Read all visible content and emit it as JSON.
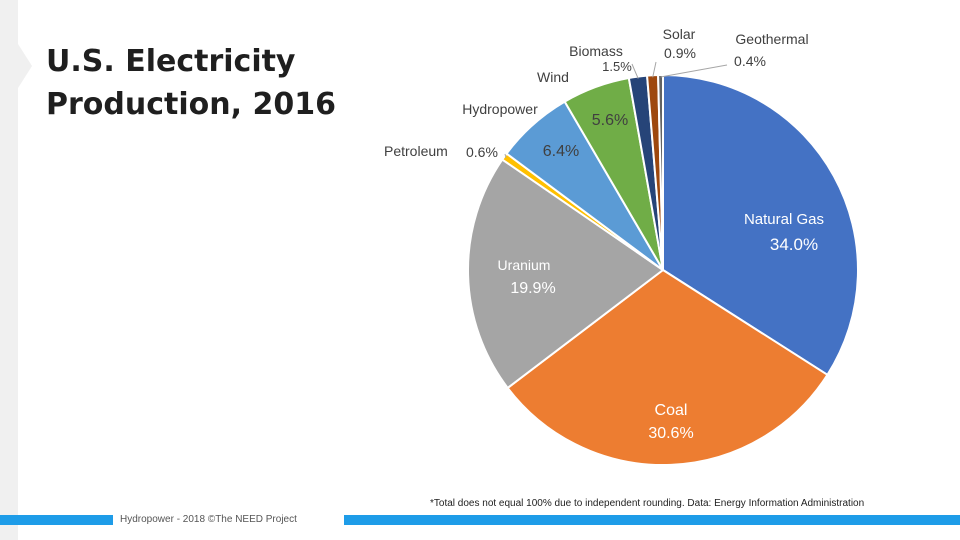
{
  "title": {
    "line1": "U.S. Electricity",
    "line2": "Production, 2016"
  },
  "chart_data": {
    "type": "pie",
    "title": "U.S. Electricity Production, 2016",
    "slices": [
      {
        "label": "Natural Gas",
        "value": 34.0,
        "value_text": "34.0%",
        "color": "#4472c4"
      },
      {
        "label": "Coal",
        "value": 30.6,
        "value_text": "30.6%",
        "color": "#ed7d31"
      },
      {
        "label": "Uranium",
        "value": 19.9,
        "value_text": "19.9%",
        "color": "#a5a5a5"
      },
      {
        "label": "Petroleum",
        "value": 0.6,
        "value_text": "0.6%",
        "color": "#ffc000"
      },
      {
        "label": "Hydropower",
        "value": 6.4,
        "value_text": "6.4%",
        "color": "#5b9bd5"
      },
      {
        "label": "Wind",
        "value": 5.6,
        "value_text": "5.6%",
        "color": "#70ad47"
      },
      {
        "label": "Biomass",
        "value": 1.5,
        "value_text": "1.5%",
        "color": "#264478"
      },
      {
        "label": "Solar",
        "value": 0.9,
        "value_text": "0.9%",
        "color": "#9e480e"
      },
      {
        "label": "Geothermal",
        "value": 0.4,
        "value_text": "0.4%",
        "color": "#636363"
      }
    ]
  },
  "footnote": "*Total does not equal 100% due to independent rounding. Data: Energy Information Administration",
  "credit": "Hydropower - 2018 ©The NEED Project"
}
